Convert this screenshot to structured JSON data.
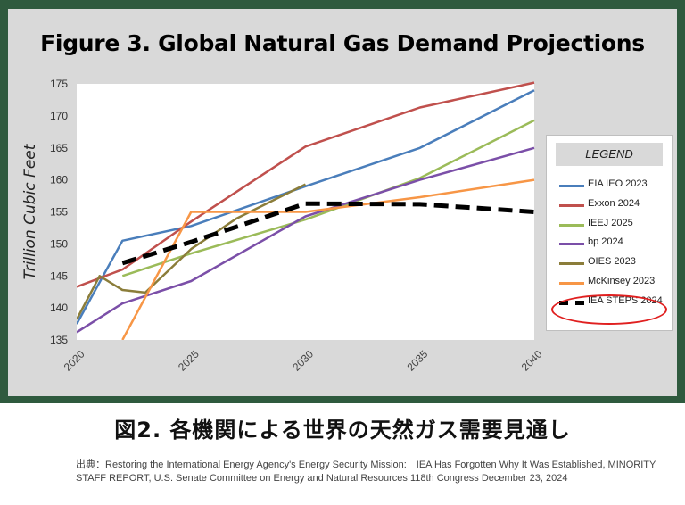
{
  "chart_data": {
    "type": "line",
    "title": "Figure 3. Global Natural Gas Demand Projections",
    "ylabel": "Trillion Cubic Feet",
    "xlabel": "",
    "xlim": [
      2020,
      2040
    ],
    "ylim": [
      135,
      175
    ],
    "x_ticks": [
      2020,
      2025,
      2030,
      2035,
      2040
    ],
    "y_ticks": [
      135,
      140,
      145,
      150,
      155,
      160,
      165,
      170,
      175
    ],
    "legend_title": "LEGEND",
    "legend_position": "right",
    "series": [
      {
        "name": "EIA IEO 2023",
        "color": "#4a7ebb",
        "style": "solid",
        "points": [
          [
            2020,
            137.5
          ],
          [
            2022,
            150.5
          ],
          [
            2025,
            152.8
          ],
          [
            2030,
            159
          ],
          [
            2035,
            165
          ],
          [
            2040,
            174
          ]
        ]
      },
      {
        "name": "Exxon 2024",
        "color": "#c0504d",
        "style": "solid",
        "points": [
          [
            2020,
            143.3
          ],
          [
            2022,
            146
          ],
          [
            2025,
            153.5
          ],
          [
            2030,
            165.2
          ],
          [
            2035,
            171.3
          ],
          [
            2040,
            175.2
          ]
        ]
      },
      {
        "name": "IEEJ 2025",
        "color": "#9bbb59",
        "style": "solid",
        "points": [
          [
            2022,
            145
          ],
          [
            2025,
            148.5
          ],
          [
            2030,
            153.8
          ],
          [
            2035,
            160.3
          ],
          [
            2040,
            169.3
          ]
        ]
      },
      {
        "name": "bp 2024",
        "color": "#7b4fa8",
        "style": "solid",
        "points": [
          [
            2020,
            136.2
          ],
          [
            2022,
            140.7
          ],
          [
            2025,
            144.2
          ],
          [
            2030,
            154.3
          ],
          [
            2035,
            160
          ],
          [
            2040,
            165
          ]
        ]
      },
      {
        "name": "OIES 2023",
        "color": "#8b7d3a",
        "style": "solid",
        "points": [
          [
            2020,
            138.2
          ],
          [
            2021,
            145
          ],
          [
            2022,
            142.8
          ],
          [
            2023,
            142.4
          ],
          [
            2025,
            149.2
          ],
          [
            2027,
            154
          ],
          [
            2030,
            159.3
          ]
        ]
      },
      {
        "name": "McKinsey 2023",
        "color": "#f79646",
        "style": "solid",
        "points": [
          [
            2022,
            135
          ],
          [
            2025,
            155
          ],
          [
            2030,
            155
          ],
          [
            2035,
            157.3
          ],
          [
            2040,
            160
          ]
        ]
      },
      {
        "name": "IEA STEPS 2024",
        "color": "#000000",
        "style": "dashed",
        "points": [
          [
            2022,
            147
          ],
          [
            2025,
            150.3
          ],
          [
            2030,
            156.3
          ],
          [
            2035,
            156.2
          ],
          [
            2040,
            155
          ]
        ]
      }
    ]
  },
  "caption": "図2. 各機関による世界の天然ガス需要見通し",
  "source": "出典：Restoring the International Energy Agency's Energy Security Mission:　IEA Has Forgotten Why It Was Established, MINORITY STAFF REPORT, U.S. Senate Committee on Energy and Natural Resources 118th Congress December 23, 2024"
}
